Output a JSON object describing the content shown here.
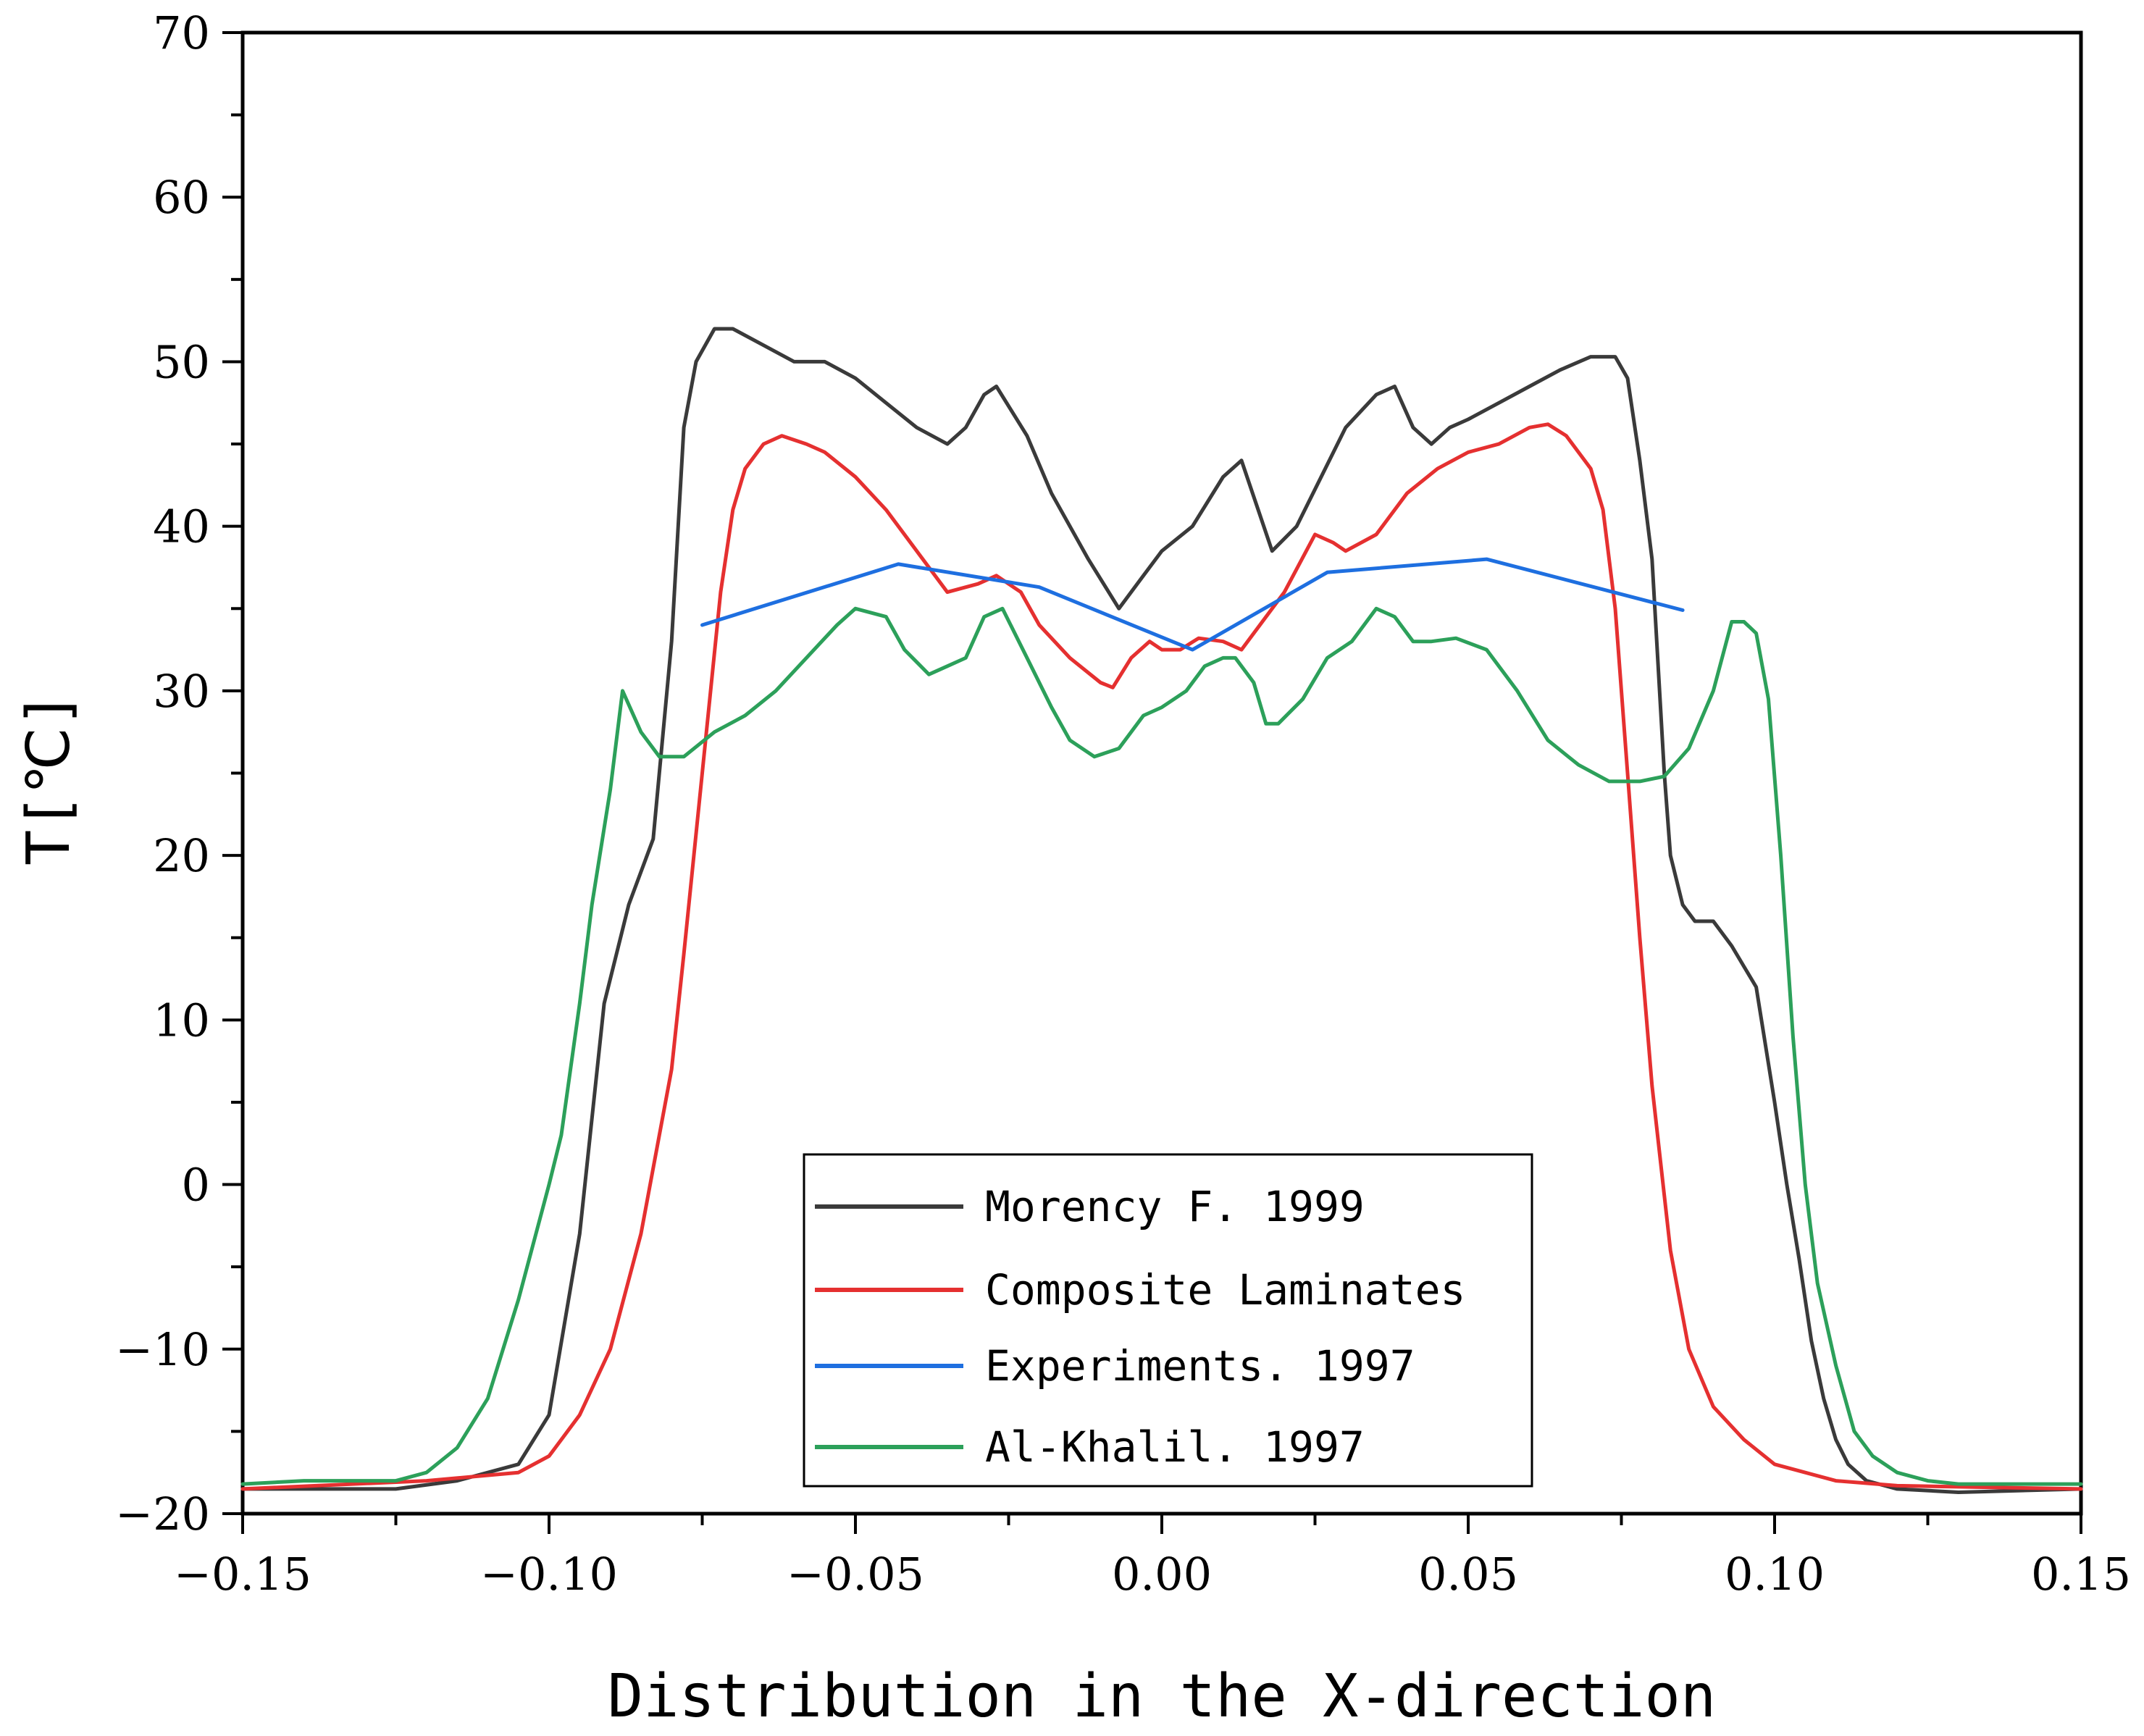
{
  "chart_data": {
    "type": "line",
    "title": "",
    "xlabel": "Distribution in the X-direction",
    "ylabel": "T[℃]",
    "xlim": [
      -0.15,
      0.15
    ],
    "ylim": [
      -20,
      70
    ],
    "xticks": [
      -0.15,
      -0.1,
      -0.05,
      0.0,
      0.05,
      0.1,
      0.15
    ],
    "xtick_labels": [
      "−0.15",
      "−0.10",
      "−0.05",
      "0.00",
      "0.05",
      "0.10",
      "0.15"
    ],
    "yticks": [
      -20,
      -10,
      0,
      10,
      20,
      30,
      40,
      50,
      60,
      70
    ],
    "ytick_labels": [
      "−20",
      "−10",
      "0",
      "10",
      "20",
      "30",
      "40",
      "50",
      "60",
      "70"
    ],
    "grid": false,
    "legend_position": "bottom-center",
    "series": [
      {
        "name": "Morency F. 1999",
        "color": "#3a3a3a",
        "x": [
          -0.15,
          -0.125,
          -0.115,
          -0.105,
          -0.1,
          -0.095,
          -0.091,
          -0.087,
          -0.083,
          -0.08,
          -0.078,
          -0.076,
          -0.073,
          -0.07,
          -0.065,
          -0.06,
          -0.055,
          -0.05,
          -0.045,
          -0.04,
          -0.035,
          -0.032,
          -0.029,
          -0.027,
          -0.022,
          -0.018,
          -0.012,
          -0.007,
          -0.003,
          0.0,
          0.005,
          0.01,
          0.013,
          0.018,
          0.022,
          0.026,
          0.03,
          0.035,
          0.038,
          0.041,
          0.044,
          0.047,
          0.05,
          0.055,
          0.06,
          0.065,
          0.07,
          0.074,
          0.076,
          0.078,
          0.08,
          0.082,
          0.083,
          0.085,
          0.087,
          0.09,
          0.093,
          0.097,
          0.1,
          0.102,
          0.104,
          0.106,
          0.108,
          0.11,
          0.112,
          0.115,
          0.12,
          0.13,
          0.15
        ],
        "y": [
          -18.5,
          -18.5,
          -18.0,
          -17.0,
          -14.0,
          -3.0,
          11.0,
          17.0,
          21.0,
          33.0,
          46.0,
          50.0,
          52.0,
          52.0,
          51.0,
          50.0,
          50.0,
          49.0,
          47.5,
          46.0,
          45.0,
          46.0,
          48.0,
          48.5,
          45.5,
          42.0,
          38.0,
          35.0,
          37.0,
          38.5,
          40.0,
          43.0,
          44.0,
          38.5,
          40.0,
          43.0,
          46.0,
          48.0,
          48.5,
          46.0,
          45.0,
          46.0,
          46.5,
          47.5,
          48.5,
          49.5,
          50.3,
          50.3,
          49.0,
          44.0,
          38.0,
          25.0,
          20.0,
          17.0,
          16.0,
          16.0,
          14.5,
          12.0,
          5.0,
          0.0,
          -4.5,
          -9.5,
          -13.0,
          -15.5,
          -17.0,
          -18.0,
          -18.5,
          -18.7,
          -18.5
        ]
      },
      {
        "name": "Composite Laminates",
        "color": "#e53030",
        "x": [
          -0.15,
          -0.12,
          -0.105,
          -0.1,
          -0.095,
          -0.09,
          -0.085,
          -0.08,
          -0.078,
          -0.075,
          -0.072,
          -0.07,
          -0.068,
          -0.065,
          -0.062,
          -0.058,
          -0.055,
          -0.05,
          -0.045,
          -0.04,
          -0.035,
          -0.03,
          -0.027,
          -0.023,
          -0.02,
          -0.015,
          -0.01,
          -0.008,
          -0.005,
          -0.002,
          0.0,
          0.003,
          0.006,
          0.01,
          0.013,
          0.016,
          0.02,
          0.025,
          0.028,
          0.03,
          0.035,
          0.04,
          0.045,
          0.05,
          0.055,
          0.06,
          0.063,
          0.066,
          0.07,
          0.072,
          0.074,
          0.076,
          0.078,
          0.08,
          0.083,
          0.086,
          0.09,
          0.095,
          0.1,
          0.105,
          0.11,
          0.12,
          0.15
        ],
        "y": [
          -18.5,
          -18.0,
          -17.5,
          -16.5,
          -14.0,
          -10.0,
          -3.0,
          7.0,
          14.0,
          25.0,
          36.0,
          41.0,
          43.5,
          45.0,
          45.5,
          45.0,
          44.5,
          43.0,
          41.0,
          38.5,
          36.0,
          36.5,
          37.0,
          36.0,
          34.0,
          32.0,
          30.5,
          30.2,
          32.0,
          33.0,
          32.5,
          32.5,
          33.2,
          33.0,
          32.5,
          34.0,
          36.0,
          39.5,
          39.0,
          38.5,
          39.5,
          42.0,
          43.5,
          44.5,
          45.0,
          46.0,
          46.2,
          45.5,
          43.5,
          41.0,
          35.0,
          25.0,
          15.0,
          6.0,
          -4.0,
          -10.0,
          -13.5,
          -15.5,
          -17.0,
          -17.5,
          -18.0,
          -18.3,
          -18.5
        ]
      },
      {
        "name": "Experiments. 1997",
        "color": "#1e6fe0",
        "x": [
          -0.075,
          -0.043,
          -0.02,
          0.005,
          0.027,
          0.053,
          0.085
        ],
        "y": [
          34.0,
          37.7,
          36.3,
          32.5,
          37.2,
          38.0,
          34.9
        ]
      },
      {
        "name": "Al-Khalil. 1997",
        "color": "#2ca05a",
        "x": [
          -0.15,
          -0.14,
          -0.125,
          -0.12,
          -0.115,
          -0.11,
          -0.105,
          -0.1,
          -0.098,
          -0.095,
          -0.093,
          -0.09,
          -0.088,
          -0.085,
          -0.082,
          -0.078,
          -0.073,
          -0.068,
          -0.063,
          -0.058,
          -0.053,
          -0.05,
          -0.045,
          -0.042,
          -0.038,
          -0.035,
          -0.032,
          -0.029,
          -0.026,
          -0.022,
          -0.018,
          -0.015,
          -0.011,
          -0.007,
          -0.003,
          0.0,
          0.004,
          0.007,
          0.01,
          0.012,
          0.015,
          0.017,
          0.019,
          0.023,
          0.027,
          0.031,
          0.035,
          0.038,
          0.041,
          0.044,
          0.048,
          0.053,
          0.058,
          0.063,
          0.068,
          0.073,
          0.078,
          0.082,
          0.086,
          0.09,
          0.093,
          0.095,
          0.097,
          0.099,
          0.101,
          0.103,
          0.105,
          0.107,
          0.11,
          0.113,
          0.116,
          0.12,
          0.125,
          0.13,
          0.15
        ],
        "y": [
          -18.2,
          -18.0,
          -18.0,
          -17.5,
          -16.0,
          -13.0,
          -7.0,
          0.0,
          3.0,
          11.0,
          17.0,
          24.0,
          30.0,
          27.5,
          26.0,
          26.0,
          27.5,
          28.5,
          30.0,
          32.0,
          34.0,
          35.0,
          34.5,
          32.5,
          31.0,
          31.5,
          32.0,
          34.5,
          35.0,
          32.0,
          29.0,
          27.0,
          26.0,
          26.5,
          28.5,
          29.0,
          30.0,
          31.5,
          32.0,
          32.0,
          30.5,
          28.0,
          28.0,
          29.5,
          32.0,
          33.0,
          35.0,
          34.5,
          33.0,
          33.0,
          33.2,
          32.5,
          30.0,
          27.0,
          25.5,
          24.5,
          24.5,
          24.8,
          26.5,
          30.0,
          34.2,
          34.2,
          33.5,
          29.5,
          20.0,
          9.0,
          0.0,
          -6.0,
          -11.0,
          -15.0,
          -16.5,
          -17.5,
          -18.0,
          -18.2,
          -18.2
        ]
      }
    ]
  }
}
